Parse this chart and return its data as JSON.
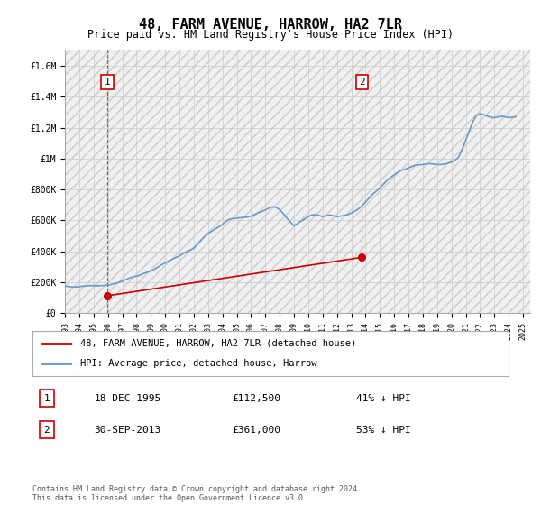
{
  "title": "48, FARM AVENUE, HARROW, HA2 7LR",
  "subtitle": "Price paid vs. HM Land Registry's House Price Index (HPI)",
  "ylim": [
    0,
    1700000
  ],
  "yticks": [
    0,
    200000,
    400000,
    600000,
    800000,
    1000000,
    1200000,
    1400000,
    1600000
  ],
  "ytick_labels": [
    "£0",
    "£200K",
    "£400K",
    "£600K",
    "£800K",
    "£1M",
    "£1.2M",
    "£1.4M",
    "£1.6M"
  ],
  "xlim_start": 1993.0,
  "xlim_end": 2025.5,
  "xticks": [
    1993,
    1994,
    1995,
    1996,
    1997,
    1998,
    1999,
    2000,
    2001,
    2002,
    2003,
    2004,
    2005,
    2006,
    2007,
    2008,
    2009,
    2010,
    2011,
    2012,
    2013,
    2014,
    2015,
    2016,
    2017,
    2018,
    2019,
    2020,
    2021,
    2022,
    2023,
    2024,
    2025
  ],
  "hpi_color": "#6699cc",
  "sale_color": "#cc0000",
  "marker_color": "#cc0000",
  "dashed_color": "#cc0000",
  "grid_color": "#cccccc",
  "background_color": "#ffffff",
  "sale1_x": 1995.97,
  "sale1_y": 112500,
  "sale1_label": "1",
  "sale2_x": 2013.75,
  "sale2_y": 361000,
  "sale2_label": "2",
  "legend_line1": "48, FARM AVENUE, HARROW, HA2 7LR (detached house)",
  "legend_line2": "HPI: Average price, detached house, Harrow",
  "annotation1_num": "1",
  "annotation1_date": "18-DEC-1995",
  "annotation1_price": "£112,500",
  "annotation1_hpi": "41% ↓ HPI",
  "annotation2_num": "2",
  "annotation2_date": "30-SEP-2013",
  "annotation2_price": "£361,000",
  "annotation2_hpi": "53% ↓ HPI",
  "footer": "Contains HM Land Registry data © Crown copyright and database right 2024.\nThis data is licensed under the Open Government Licence v3.0.",
  "hpi_data_x": [
    1993.0,
    1993.25,
    1993.5,
    1993.75,
    1994.0,
    1994.25,
    1994.5,
    1994.75,
    1995.0,
    1995.25,
    1995.5,
    1995.75,
    1996.0,
    1996.25,
    1996.5,
    1996.75,
    1997.0,
    1997.25,
    1997.5,
    1997.75,
    1998.0,
    1998.25,
    1998.5,
    1998.75,
    1999.0,
    1999.25,
    1999.5,
    1999.75,
    2000.0,
    2000.25,
    2000.5,
    2000.75,
    2001.0,
    2001.25,
    2001.5,
    2001.75,
    2002.0,
    2002.25,
    2002.5,
    2002.75,
    2003.0,
    2003.25,
    2003.5,
    2003.75,
    2004.0,
    2004.25,
    2004.5,
    2004.75,
    2005.0,
    2005.25,
    2005.5,
    2005.75,
    2006.0,
    2006.25,
    2006.5,
    2006.75,
    2007.0,
    2007.25,
    2007.5,
    2007.75,
    2008.0,
    2008.25,
    2008.5,
    2008.75,
    2009.0,
    2009.25,
    2009.5,
    2009.75,
    2010.0,
    2010.25,
    2010.5,
    2010.75,
    2011.0,
    2011.25,
    2011.5,
    2011.75,
    2012.0,
    2012.25,
    2012.5,
    2012.75,
    2013.0,
    2013.25,
    2013.5,
    2013.75,
    2014.0,
    2014.25,
    2014.5,
    2014.75,
    2015.0,
    2015.25,
    2015.5,
    2015.75,
    2016.0,
    2016.25,
    2016.5,
    2016.75,
    2017.0,
    2017.25,
    2017.5,
    2017.75,
    2018.0,
    2018.25,
    2018.5,
    2018.75,
    2019.0,
    2019.25,
    2019.5,
    2019.75,
    2020.0,
    2020.25,
    2020.5,
    2020.75,
    2021.0,
    2021.25,
    2021.5,
    2021.75,
    2022.0,
    2022.25,
    2022.5,
    2022.75,
    2023.0,
    2023.25,
    2023.5,
    2023.75,
    2024.0,
    2024.25,
    2024.5
  ],
  "hpi_data_y": [
    175000,
    172000,
    170000,
    169000,
    171000,
    174000,
    177000,
    178000,
    178000,
    177000,
    178000,
    179000,
    181000,
    186000,
    192000,
    198000,
    207000,
    217000,
    227000,
    234000,
    239000,
    247000,
    257000,
    265000,
    272000,
    284000,
    298000,
    313000,
    325000,
    337000,
    349000,
    360000,
    370000,
    385000,
    398000,
    408000,
    420000,
    445000,
    470000,
    495000,
    515000,
    530000,
    545000,
    558000,
    575000,
    595000,
    608000,
    612000,
    615000,
    618000,
    620000,
    622000,
    628000,
    638000,
    650000,
    658000,
    668000,
    680000,
    688000,
    685000,
    670000,
    645000,
    615000,
    590000,
    565000,
    580000,
    595000,
    610000,
    625000,
    635000,
    638000,
    632000,
    625000,
    632000,
    635000,
    630000,
    625000,
    628000,
    632000,
    638000,
    648000,
    660000,
    675000,
    695000,
    720000,
    745000,
    770000,
    790000,
    810000,
    835000,
    860000,
    878000,
    895000,
    912000,
    925000,
    930000,
    940000,
    950000,
    958000,
    960000,
    962000,
    965000,
    968000,
    965000,
    962000,
    962000,
    965000,
    970000,
    978000,
    990000,
    1010000,
    1060000,
    1120000,
    1180000,
    1240000,
    1280000,
    1290000,
    1285000,
    1275000,
    1268000,
    1265000,
    1270000,
    1275000,
    1270000,
    1265000,
    1268000,
    1272000
  ],
  "sale_data_x": [
    1995.97,
    2013.75
  ],
  "sale_data_y": [
    112500,
    361000
  ]
}
